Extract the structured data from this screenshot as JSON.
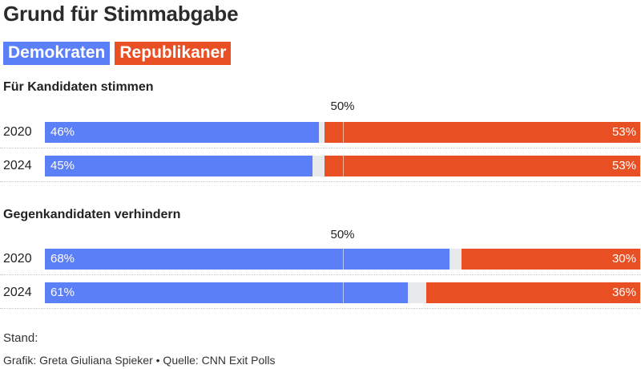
{
  "title": "Grund für Stimmabgabe",
  "legend": [
    {
      "label": "Demokraten",
      "color": "#5b7ff6"
    },
    {
      "label": "Republikaner",
      "color": "#e84f23"
    }
  ],
  "chart_data": [
    {
      "type": "bar",
      "stacked": true,
      "orientation": "horizontal",
      "title": "Für Kandidaten stimmen",
      "reference_label": "50%",
      "reference_value": 50,
      "categories": [
        "2020",
        "2024"
      ],
      "series": [
        {
          "name": "Demokraten",
          "values": [
            46,
            45
          ],
          "labels": [
            "46%",
            "45%"
          ]
        },
        {
          "name": "Republikaner",
          "values": [
            53,
            53
          ],
          "labels": [
            "53%",
            "53%"
          ]
        }
      ],
      "xlim": [
        0,
        100
      ]
    },
    {
      "type": "bar",
      "stacked": true,
      "orientation": "horizontal",
      "title": "Gegenkandidaten verhindern",
      "reference_label": "50%",
      "reference_value": 50,
      "categories": [
        "2020",
        "2024"
      ],
      "series": [
        {
          "name": "Demokraten",
          "values": [
            68,
            61
          ],
          "labels": [
            "68%",
            "61%"
          ]
        },
        {
          "name": "Republikaner",
          "values": [
            30,
            36
          ],
          "labels": [
            "30%",
            "36%"
          ]
        }
      ],
      "xlim": [
        0,
        100
      ]
    }
  ],
  "footer": {
    "stand": "Stand:",
    "credit": "Grafik: Greta Giuliana Spieker • Quelle: CNN Exit Polls"
  }
}
